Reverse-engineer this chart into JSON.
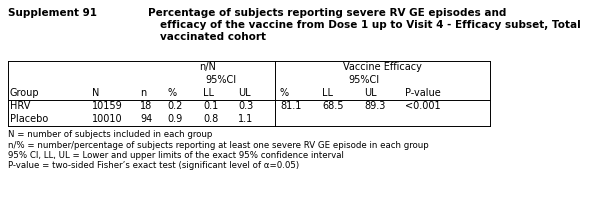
{
  "title_label": "Supplement 91",
  "title_line1": "Percentage of subjects reporting severe RV GE episodes and",
  "title_line2": "efficacy of the vaccine from Dose 1 up to Visit 4 - Efficacy subset, Total",
  "title_line3": "vaccinated cohort",
  "footnotes": [
    "N = number of subjects included in each group",
    "n/% = number/percentage of subjects reporting at least one severe RV GE episode in each group",
    "95% CI, LL, UL = Lower and upper limits of the exact 95% confidence interval",
    "P-value = two-sided Fisher’s exact test (significant level of α=0.05)"
  ],
  "figsize": [
    5.92,
    2.21
  ],
  "dpi": 100,
  "bg_color": "white",
  "font_size_title": 7.5,
  "font_size_table": 7.0,
  "font_size_footnote": 6.2
}
